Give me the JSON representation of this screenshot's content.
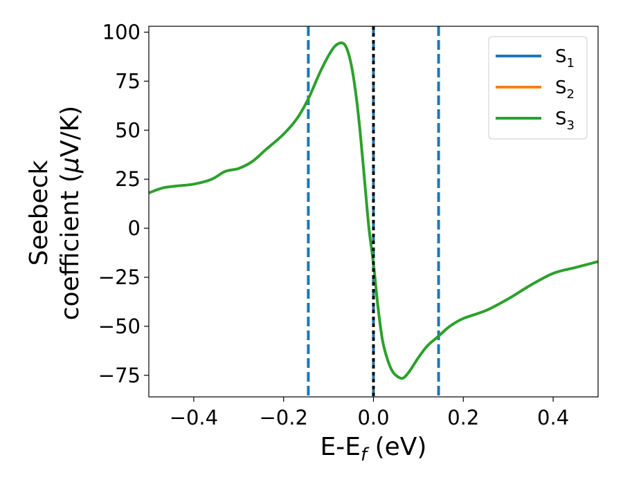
{
  "chart_data": {
    "type": "line",
    "xlabel": {
      "base": "E-E",
      "sub": "f",
      "rest": " (eV)"
    },
    "ylabel": {
      "line1": "Seebeck",
      "line2": "coefficient  (",
      "mu": "μ",
      "line2_end": "V/K)"
    },
    "xlim": [
      -0.5,
      0.5
    ],
    "ylim": [
      -86,
      103
    ],
    "x_ticks": [
      -0.4,
      -0.2,
      0.0,
      0.2,
      0.4
    ],
    "x_tick_labels": [
      "−0.4",
      "−0.2",
      "0.0",
      "0.2",
      "0.4"
    ],
    "y_ticks": [
      100,
      75,
      50,
      25,
      0,
      -25,
      -50,
      -75
    ],
    "y_tick_labels": [
      "100",
      "75",
      "50",
      "25",
      "0",
      "−25",
      "−50",
      "−75"
    ],
    "legend_position": "top-right",
    "series": [
      {
        "name_base": "S",
        "name_sub": "1",
        "color": "#1f77b4"
      },
      {
        "name_base": "S",
        "name_sub": "2",
        "color": "#ff7f0e"
      },
      {
        "name_base": "S",
        "name_sub": "3",
        "color": "#2ca02c"
      }
    ],
    "curve_color": "#2ca02c",
    "x": [
      -0.5,
      -0.47,
      -0.44,
      -0.4,
      -0.36,
      -0.33,
      -0.3,
      -0.27,
      -0.24,
      -0.2,
      -0.17,
      -0.145,
      -0.12,
      -0.1,
      -0.085,
      -0.07,
      -0.06,
      -0.05,
      -0.04,
      -0.03,
      -0.02,
      -0.01,
      0.0,
      0.01,
      0.02,
      0.03,
      0.04,
      0.05,
      0.065,
      0.08,
      0.1,
      0.12,
      0.145,
      0.17,
      0.2,
      0.25,
      0.3,
      0.35,
      0.4,
      0.45,
      0.5
    ],
    "y": [
      18,
      20.5,
      21.5,
      22.5,
      25,
      29,
      30.5,
      34,
      40,
      48,
      56,
      66,
      79,
      88,
      93,
      94.5,
      92,
      84,
      70,
      50,
      25,
      0,
      -18,
      -40,
      -57,
      -66,
      -72,
      -75,
      -76.5,
      -73,
      -66,
      -60,
      -55,
      -50,
      -46,
      -42,
      -36,
      -29,
      -23,
      -20,
      -17
    ],
    "vlines_dashed": [
      -0.145,
      0.0,
      0.145
    ],
    "vline_dashed_color": "#1f77b4",
    "vline_dotted": 0.0,
    "vline_dotted_color": "#000000"
  }
}
